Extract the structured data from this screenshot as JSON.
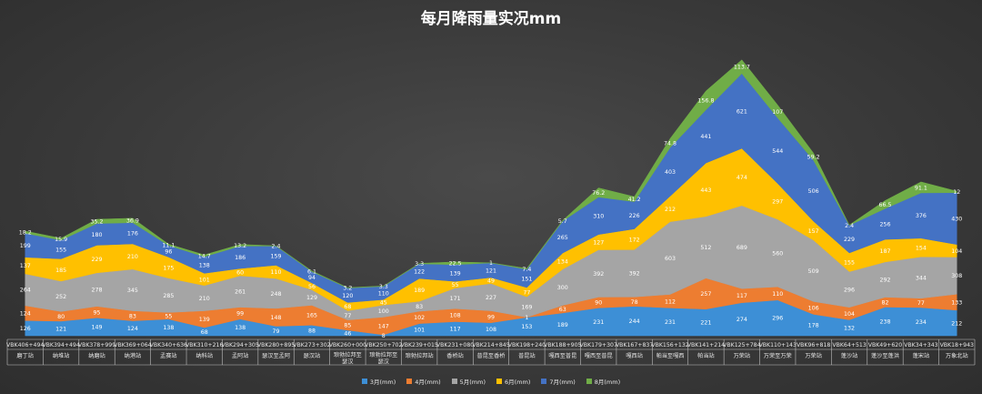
{
  "chart_data": {
    "type": "area",
    "stacked": true,
    "title": "每月降雨量实况mm",
    "legend_position": "bottom",
    "grid": false,
    "categories": [
      {
        "code": "VBK406+494",
        "name": "磨丁站"
      },
      {
        "code": "VBK394+494",
        "name": "纳堆站"
      },
      {
        "code": "VBK378+999",
        "name": "纳磨站"
      },
      {
        "code": "VBK369+064",
        "name": "纳港站"
      },
      {
        "code": "VBK340+636",
        "name": "孟赛站"
      },
      {
        "code": "VBK310+216",
        "name": "纳科站"
      },
      {
        "code": "VBK294+305",
        "name": "孟阿站"
      },
      {
        "code": "VBK280+895",
        "name": "瑟汉至孟阿"
      },
      {
        "code": "VBK273+302",
        "name": "瑟汉站"
      },
      {
        "code": "VBK260+000",
        "name": "琅勃拉邦至瑟汉"
      },
      {
        "code": "VBK250+702",
        "name": "琅勃拉邦至瑟汉"
      },
      {
        "code": "VBK239+015",
        "name": "琅勃拉邦站"
      },
      {
        "code": "VBK231+080",
        "name": "香桥站"
      },
      {
        "code": "VBK214+845",
        "name": "普昆至香桥"
      },
      {
        "code": "VBK198+240",
        "name": "普昆站"
      },
      {
        "code": "VBK188+905",
        "name": "嘎西至普昆"
      },
      {
        "code": "VBK179+307",
        "name": "嘎西至普昆"
      },
      {
        "code": "VBK167+837",
        "name": "嘎西站"
      },
      {
        "code": "VBK156+132",
        "name": "帕当至嘎西"
      },
      {
        "code": "VBK141+214",
        "name": "帕当站"
      },
      {
        "code": "VBK125+784",
        "name": "万荣站"
      },
      {
        "code": "VBK110+143",
        "name": "万荣至万荣"
      },
      {
        "code": "VBK96+818",
        "name": "万荣站"
      },
      {
        "code": "VBK64+513",
        "name": "蓬沙站"
      },
      {
        "code": "VBK49+620",
        "name": "蓬沙至蓬洪"
      },
      {
        "code": "VBK34+343",
        "name": "蓬宋站"
      },
      {
        "code": "VBK18+943",
        "name": "万象北站"
      }
    ],
    "series": [
      {
        "name": "3月(mm)",
        "color": "#3d8fd6",
        "values": [
          126,
          121,
          149,
          124,
          138,
          68,
          138,
          79,
          88,
          46,
          8,
          101,
          117,
          108,
          153,
          189,
          231,
          244,
          231,
          221,
          274,
          296,
          178,
          132,
          238,
          234,
          212
        ]
      },
      {
        "name": "4月(mm)",
        "color": "#ed7d31",
        "values": [
          124,
          80,
          95,
          83,
          55,
          139,
          99,
          148,
          165,
          85,
          147,
          102,
          108,
          99,
          1,
          63,
          90,
          78,
          112,
          257,
          117,
          110,
          106,
          104,
          82,
          77,
          133
        ]
      },
      {
        "name": "5月(mm)",
        "color": "#a5a5a5",
        "values": [
          264,
          252,
          278,
          345,
          285,
          210,
          261,
          248,
          129,
          77,
          100,
          83,
          171,
          227,
          169,
          300,
          392,
          392,
          603,
          512,
          689,
          560,
          509,
          296,
          292,
          344,
          308
        ]
      },
      {
        "name": "6月(mm)",
        "color": "#ffc000",
        "values": [
          137,
          185,
          229,
          210,
          175,
          101,
          60,
          110,
          56,
          68,
          45,
          189,
          55,
          49,
          77,
          134,
          127,
          172,
          212,
          443,
          474,
          297,
          157,
          155,
          187,
          154,
          104
        ]
      },
      {
        "name": "7月(mm)",
        "color": "#4472c4",
        "values": [
          199,
          155,
          180,
          176,
          96,
          138,
          186,
          159,
          94,
          120,
          110,
          122,
          139,
          121,
          151,
          265,
          310,
          226,
          403,
          441,
          621,
          544,
          506,
          229,
          256,
          376,
          430
        ]
      },
      {
        "name": "8月(mm)",
        "color": "#70ad47",
        "values": [
          18.2,
          15.9,
          35.2,
          36.9,
          11.1,
          14.7,
          13.2,
          2.4,
          6.1,
          3.2,
          3.3,
          3.3,
          22.5,
          1,
          7.4,
          5.7,
          76.2,
          41.2,
          74.8,
          156.8,
          113.7,
          107,
          59.2,
          2.4,
          66.5,
          91.1,
          12
        ]
      }
    ]
  }
}
